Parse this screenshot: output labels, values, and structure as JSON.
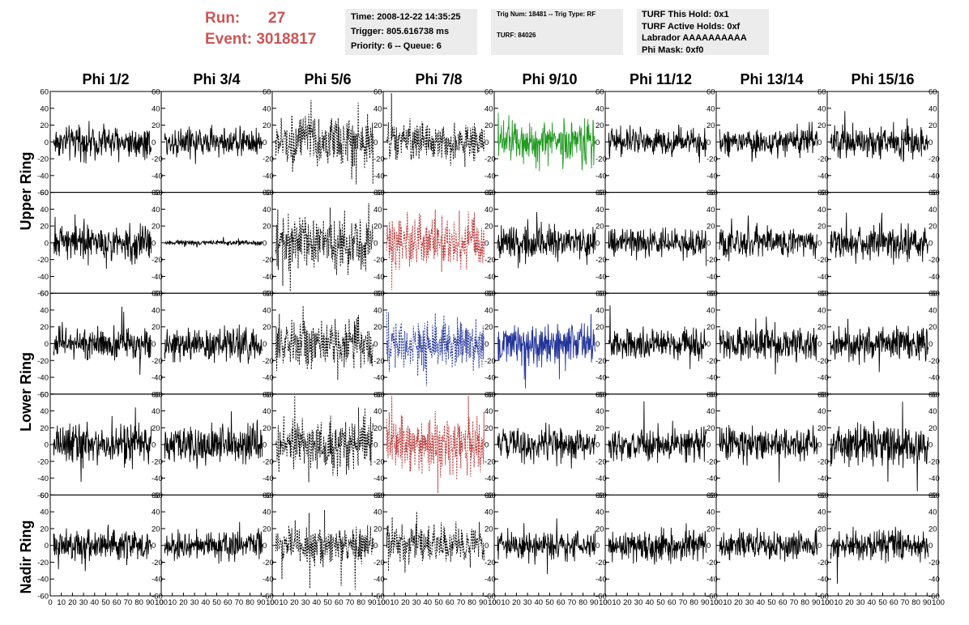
{
  "header": {
    "run_label": "Run:",
    "run_value": "27",
    "event_label": "Event:",
    "event_value": "3018817",
    "time_line": "Time: 2008-12-22 14:35:25",
    "trigger_line": "Trigger: 805.616738 ms",
    "priority_line": "Priority: 6 -- Queue: 6",
    "trig_num_line": "Trig Num: 18481 -- Trig Type: RF",
    "turf_line": "TURF: 84026",
    "turf_hold_line": "TURF This Hold: 0x1",
    "turf_active_line": "TURF Active Holds: 0xf",
    "labrador_line": "Labrador AAAAAAAAAA",
    "phi_mask_line": "Phi Mask: 0xf0"
  },
  "chart_data": {
    "type": "line",
    "columns": [
      "Phi 1/2",
      "Phi 3/4",
      "Phi 5/6",
      "Phi 7/8",
      "Phi 9/10",
      "Phi 11/12",
      "Phi 13/14",
      "Phi 15/16"
    ],
    "ring_labels": [
      "Upper Ring",
      "Lower Ring",
      "Nadir Ring"
    ],
    "panel_rows": 5,
    "ylim": [
      -60,
      60
    ],
    "yticks": [
      -60,
      -40,
      -20,
      0,
      20,
      40,
      60
    ],
    "xlim": [
      0,
      100
    ],
    "xticks": [
      0,
      10,
      20,
      30,
      40,
      50,
      60,
      70,
      80,
      90,
      100
    ],
    "grid": false,
    "colors": {
      "normal": "#000000",
      "triggered_green": "#229922",
      "triggered_red": "#bb3333",
      "triggered_blue": "#223399",
      "header_red": "#cc5555",
      "info_box_bg": "#ececec"
    },
    "panels": [
      {
        "row": 0,
        "col": 0,
        "style": "solid",
        "color": "#000000",
        "amp": 13
      },
      {
        "row": 0,
        "col": 1,
        "style": "solid",
        "color": "#000000",
        "amp": 12
      },
      {
        "row": 0,
        "col": 2,
        "style": "dashed",
        "color": "#000000",
        "amp": 20
      },
      {
        "row": 0,
        "col": 3,
        "style": "dashed",
        "color": "#000000",
        "amp": 16
      },
      {
        "row": 0,
        "col": 4,
        "style": "solid",
        "color": "#229922",
        "amp": 18
      },
      {
        "row": 0,
        "col": 5,
        "style": "solid",
        "color": "#000000",
        "amp": 11
      },
      {
        "row": 0,
        "col": 6,
        "style": "solid",
        "color": "#000000",
        "amp": 12
      },
      {
        "row": 0,
        "col": 7,
        "style": "solid",
        "color": "#000000",
        "amp": 13
      },
      {
        "row": 1,
        "col": 0,
        "style": "solid",
        "color": "#000000",
        "amp": 15
      },
      {
        "row": 1,
        "col": 1,
        "style": "solid",
        "color": "#000000",
        "amp": 2
      },
      {
        "row": 1,
        "col": 2,
        "style": "dashed",
        "color": "#000000",
        "amp": 22
      },
      {
        "row": 1,
        "col": 3,
        "style": "dashed",
        "color": "#bb3333",
        "amp": 22
      },
      {
        "row": 1,
        "col": 4,
        "style": "solid",
        "color": "#000000",
        "amp": 14
      },
      {
        "row": 1,
        "col": 5,
        "style": "solid",
        "color": "#000000",
        "amp": 11
      },
      {
        "row": 1,
        "col": 6,
        "style": "solid",
        "color": "#000000",
        "amp": 13
      },
      {
        "row": 1,
        "col": 7,
        "style": "solid",
        "color": "#000000",
        "amp": 15
      },
      {
        "row": 2,
        "col": 0,
        "style": "solid",
        "color": "#000000",
        "amp": 13
      },
      {
        "row": 2,
        "col": 1,
        "style": "solid",
        "color": "#000000",
        "amp": 13
      },
      {
        "row": 2,
        "col": 2,
        "style": "dashed",
        "color": "#000000",
        "amp": 20
      },
      {
        "row": 2,
        "col": 3,
        "style": "dashed",
        "color": "#223399",
        "amp": 20
      },
      {
        "row": 2,
        "col": 4,
        "style": "solid",
        "color": "#223399",
        "amp": 16
      },
      {
        "row": 2,
        "col": 5,
        "style": "solid",
        "color": "#000000",
        "amp": 12
      },
      {
        "row": 2,
        "col": 6,
        "style": "solid",
        "color": "#000000",
        "amp": 14
      },
      {
        "row": 2,
        "col": 7,
        "style": "solid",
        "color": "#000000",
        "amp": 13
      },
      {
        "row": 3,
        "col": 0,
        "style": "solid",
        "color": "#000000",
        "amp": 16
      },
      {
        "row": 3,
        "col": 1,
        "style": "solid",
        "color": "#000000",
        "amp": 15
      },
      {
        "row": 3,
        "col": 2,
        "style": "dashed",
        "color": "#000000",
        "amp": 20
      },
      {
        "row": 3,
        "col": 3,
        "style": "dashed",
        "color": "#bb3333",
        "amp": 22
      },
      {
        "row": 3,
        "col": 4,
        "style": "solid",
        "color": "#000000",
        "amp": 14
      },
      {
        "row": 3,
        "col": 5,
        "style": "solid",
        "color": "#000000",
        "amp": 13
      },
      {
        "row": 3,
        "col": 6,
        "style": "solid",
        "color": "#000000",
        "amp": 13
      },
      {
        "row": 3,
        "col": 7,
        "style": "solid",
        "color": "#000000",
        "amp": 16
      },
      {
        "row": 4,
        "col": 0,
        "style": "solid",
        "color": "#000000",
        "amp": 13
      },
      {
        "row": 4,
        "col": 1,
        "style": "solid",
        "color": "#000000",
        "amp": 11
      },
      {
        "row": 4,
        "col": 2,
        "style": "dashed",
        "color": "#000000",
        "amp": 16
      },
      {
        "row": 4,
        "col": 3,
        "style": "dashed",
        "color": "#000000",
        "amp": 16
      },
      {
        "row": 4,
        "col": 4,
        "style": "solid",
        "color": "#000000",
        "amp": 11
      },
      {
        "row": 4,
        "col": 5,
        "style": "solid",
        "color": "#000000",
        "amp": 12
      },
      {
        "row": 4,
        "col": 6,
        "style": "solid",
        "color": "#000000",
        "amp": 11
      },
      {
        "row": 4,
        "col": 7,
        "style": "solid",
        "color": "#000000",
        "amp": 12
      }
    ]
  }
}
